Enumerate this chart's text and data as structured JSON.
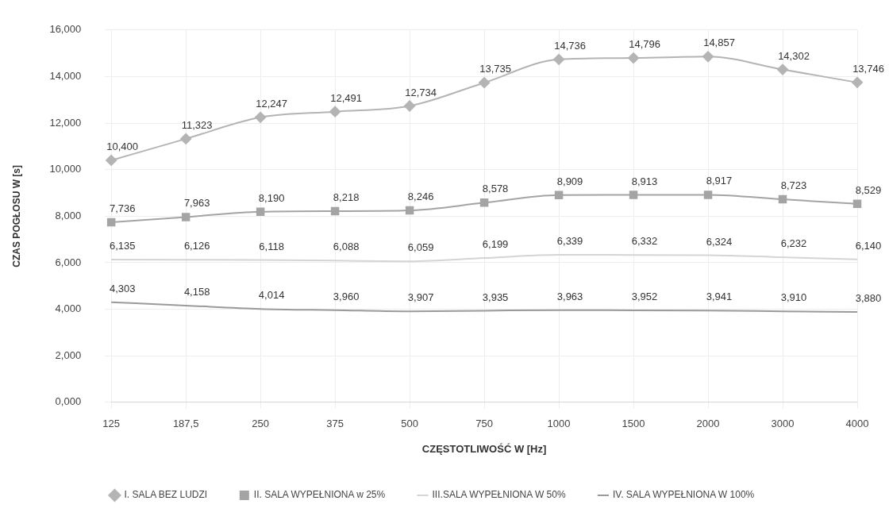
{
  "chart_data": {
    "type": "line",
    "xlabel": "CZĘSTOTLIWOŚĆ W [Hz]",
    "ylabel": "CZAS POGŁOSU W [s]",
    "categories": [
      "125",
      "187,5",
      "250",
      "375",
      "500",
      "750",
      "1000",
      "1500",
      "2000",
      "3000",
      "4000"
    ],
    "ylim": [
      0,
      16
    ],
    "yticks": [
      {
        "value": 0,
        "label": "0,000"
      },
      {
        "value": 2,
        "label": "2,000"
      },
      {
        "value": 4,
        "label": "4,000"
      },
      {
        "value": 6,
        "label": "6,000"
      },
      {
        "value": 8,
        "label": "8,000"
      },
      {
        "value": 10,
        "label": "10,000"
      },
      {
        "value": 12,
        "label": "12,000"
      },
      {
        "value": 14,
        "label": "14,000"
      },
      {
        "value": 16,
        "label": "16,000"
      }
    ],
    "grid": true,
    "legend": "bottom",
    "line_style": "solid",
    "series": [
      {
        "name": "I. SALA BEZ LUDZI",
        "color": "#b4b4b4",
        "marker": "diamond",
        "values": [
          10.4,
          11.323,
          12.247,
          12.491,
          12.734,
          13.735,
          14.736,
          14.796,
          14.857,
          14.302,
          13.746
        ],
        "value_labels": [
          "10,400",
          "11,323",
          "12,247",
          "12,491",
          "12,734",
          "13,735",
          "14,736",
          "14,796",
          "14,857",
          "14,302",
          "13,746"
        ]
      },
      {
        "name": "II. SALA WYPEŁNIONA w 25%",
        "color": "#a4a4a4",
        "marker": "square",
        "values": [
          7.736,
          7.963,
          8.19,
          8.218,
          8.246,
          8.578,
          8.909,
          8.913,
          8.917,
          8.723,
          8.529
        ],
        "value_labels": [
          "7,736",
          "7,963",
          "8,190",
          "8,218",
          "8,246",
          "8,578",
          "8,909",
          "8,913",
          "8,917",
          "8,723",
          "8,529"
        ]
      },
      {
        "name": "III.SALA WYPEŁNIONA W 50%",
        "color": "#d4d4d4",
        "marker": "none",
        "values": [
          6.135,
          6.126,
          6.118,
          6.088,
          6.059,
          6.199,
          6.339,
          6.332,
          6.324,
          6.232,
          6.14
        ],
        "value_labels": [
          "6,135",
          "6,126",
          "6,118",
          "6,088",
          "6,059",
          "6,199",
          "6,339",
          "6,332",
          "6,324",
          "6,232",
          "6,140"
        ]
      },
      {
        "name": "IV. SALA WYPEŁNIONA W 100%",
        "color": "#9a9a9a",
        "marker": "none",
        "values": [
          4.303,
          4.158,
          4.014,
          3.96,
          3.907,
          3.935,
          3.963,
          3.952,
          3.941,
          3.91,
          3.88
        ],
        "value_labels": [
          "4,303",
          "4,158",
          "4,014",
          "3,960",
          "3,907",
          "3,935",
          "3,963",
          "3,952",
          "3,941",
          "3,910",
          "3,880"
        ]
      }
    ]
  }
}
